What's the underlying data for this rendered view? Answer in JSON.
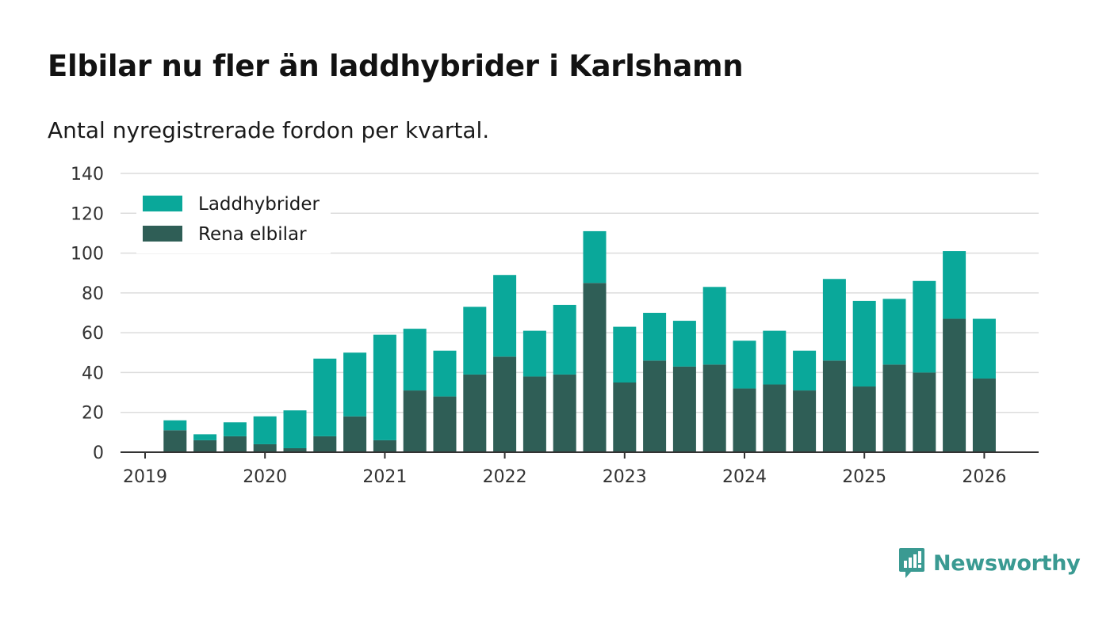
{
  "title": "Elbilar nu fler än laddhybrider i Karlshamn",
  "subtitle": "Antal nyregistrerade fordon per kvartal.",
  "brand": {
    "name": "Newsworthy",
    "color": "#3a9a92"
  },
  "colors": {
    "laddhybrider": "#0aa89a",
    "elbilar": "#2f5e56",
    "grid": "#dcdcdc",
    "axis": "#333333"
  },
  "chart_data": {
    "type": "bar",
    "stacked": true,
    "title": "Elbilar nu fler än laddhybrider i Karlshamn",
    "subtitle": "Antal nyregistrerade fordon per kvartal.",
    "xlabel": "",
    "ylabel": "",
    "ylim": [
      0,
      140
    ],
    "yticks": [
      0,
      20,
      40,
      60,
      80,
      100,
      120,
      140
    ],
    "xticks": [
      "2019",
      "2020",
      "2021",
      "2022",
      "2023",
      "2024",
      "2025",
      "2026"
    ],
    "legend_position": "top-left",
    "categories": [
      "2019 Q2",
      "2019 Q3",
      "2019 Q4",
      "2020 Q1",
      "2020 Q2",
      "2020 Q3",
      "2020 Q4",
      "2021 Q1",
      "2021 Q2",
      "2021 Q3",
      "2021 Q4",
      "2022 Q1",
      "2022 Q2",
      "2022 Q3",
      "2022 Q4",
      "2023 Q1",
      "2023 Q2",
      "2023 Q3",
      "2023 Q4",
      "2024 Q1",
      "2024 Q2",
      "2024 Q3",
      "2024 Q4",
      "2025 Q1",
      "2025 Q2",
      "2025 Q3",
      "2025 Q4",
      "2026 Q1"
    ],
    "series": [
      {
        "name": "Rena elbilar",
        "values": [
          11,
          6,
          8,
          4,
          2,
          8,
          18,
          6,
          31,
          28,
          39,
          48,
          38,
          39,
          85,
          35,
          46,
          43,
          44,
          32,
          34,
          31,
          46,
          33,
          44,
          40,
          67,
          37
        ]
      },
      {
        "name": "Laddhybrider",
        "values": [
          5,
          3,
          7,
          14,
          19,
          39,
          32,
          53,
          31,
          23,
          34,
          41,
          23,
          35,
          26,
          28,
          24,
          23,
          39,
          24,
          27,
          20,
          41,
          43,
          33,
          46,
          34,
          30
        ]
      }
    ]
  }
}
